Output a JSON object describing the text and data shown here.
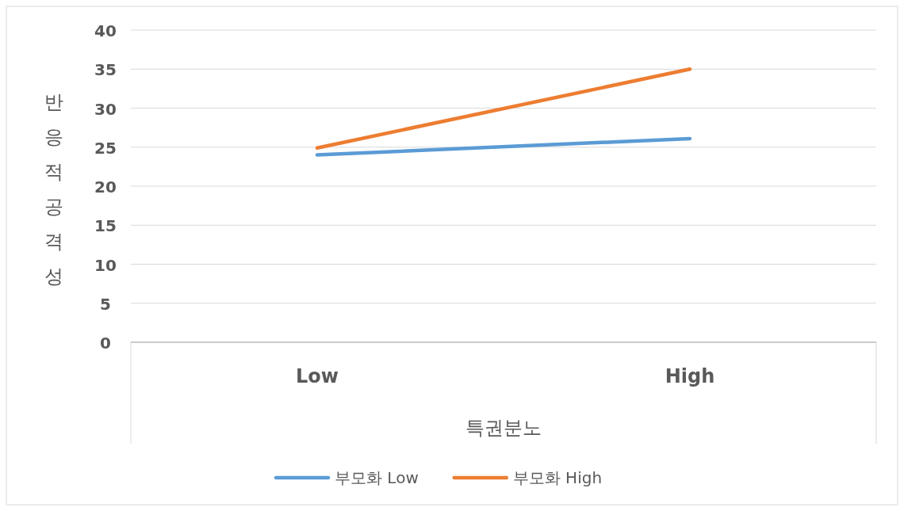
{
  "chart_data": {
    "type": "line",
    "xlabel": "특권분노",
    "ylabel": "반응적 공격성",
    "categories": [
      "Low",
      "High"
    ],
    "series": [
      {
        "name": "부모화 Low",
        "color": "#5b9bd5",
        "values": [
          24.0,
          26.1
        ]
      },
      {
        "name": "부모화 High",
        "color": "#ed7d31",
        "values": [
          24.9,
          35.0
        ]
      }
    ],
    "ylim": [
      0,
      40
    ],
    "yticks": [
      0,
      5,
      10,
      15,
      20,
      25,
      30,
      35,
      40
    ],
    "grid": "y",
    "legend": "bottom",
    "marker": "none",
    "line_style": "solid"
  }
}
